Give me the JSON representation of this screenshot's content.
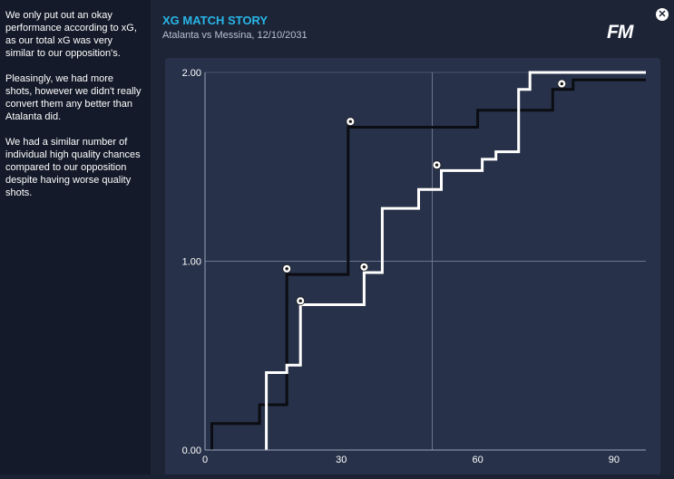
{
  "sidebar": {
    "paragraphs": [
      "We only put out an okay performance according to xG, as our total xG was very similar to our opposition's.",
      "Pleasingly, we had more shots, however we didn't really convert them any better than Atalanta did.",
      "We had a similar number of individual high quality chances compared to our opposition despite having worse quality shots."
    ]
  },
  "header": {
    "title": "XG MATCH STORY",
    "subtitle": "Atalanta vs Messina, 12/10/2031",
    "logo": "FM",
    "close_icon": "close-icon"
  },
  "colors": {
    "background": "#1d2436",
    "sidebar": "#141a29",
    "panel": "#273149",
    "title": "#29b6e8",
    "series_white": "#ffffff",
    "series_black": "#0b0d12"
  },
  "chart_data": {
    "type": "line",
    "step": true,
    "xlim": [
      0,
      97
    ],
    "ylim": [
      0,
      2.0
    ],
    "x_ticks": [
      0,
      30,
      60,
      90
    ],
    "y_ticks": [
      0.0,
      1.0,
      2.0
    ],
    "y_tick_labels": [
      "0.00",
      "1.00",
      "2.00"
    ],
    "x_tick_labels": [
      "0",
      "30",
      "60",
      "90"
    ],
    "grid": {
      "vertical": [
        50
      ],
      "horizontal": [
        1.0
      ]
    },
    "series": [
      {
        "color": "#0b0d12",
        "points": [
          [
            1.5,
            0
          ],
          [
            1.5,
            0.14
          ],
          [
            12,
            0.14
          ],
          [
            12,
            0.24
          ],
          [
            18,
            0.24
          ],
          [
            18,
            0.93
          ],
          [
            31.5,
            0.93
          ],
          [
            31.5,
            1.71
          ],
          [
            60,
            1.71
          ],
          [
            60,
            1.8
          ],
          [
            76.5,
            1.8
          ],
          [
            76.5,
            1.91
          ],
          [
            81,
            1.91
          ],
          [
            81,
            1.96
          ],
          [
            97,
            1.96
          ]
        ],
        "goals": [
          [
            18,
            0.96
          ],
          [
            32,
            1.74
          ],
          [
            78.5,
            1.94
          ]
        ]
      },
      {
        "color": "#ffffff",
        "points": [
          [
            13.5,
            0
          ],
          [
            13.5,
            0.41
          ],
          [
            18,
            0.41
          ],
          [
            18,
            0.45
          ],
          [
            21,
            0.45
          ],
          [
            21,
            0.77
          ],
          [
            35,
            0.77
          ],
          [
            35,
            0.94
          ],
          [
            39,
            0.94
          ],
          [
            39,
            1.28
          ],
          [
            47,
            1.28
          ],
          [
            47,
            1.38
          ],
          [
            52,
            1.38
          ],
          [
            52,
            1.48
          ],
          [
            61,
            1.48
          ],
          [
            61,
            1.54
          ],
          [
            64,
            1.54
          ],
          [
            64,
            1.58
          ],
          [
            69,
            1.58
          ],
          [
            69,
            1.91
          ],
          [
            71.5,
            1.91
          ],
          [
            71.5,
            2.0
          ],
          [
            97,
            2.0
          ]
        ],
        "goals": [
          [
            21,
            0.79
          ],
          [
            35,
            0.97
          ],
          [
            51,
            1.51
          ]
        ]
      }
    ]
  }
}
